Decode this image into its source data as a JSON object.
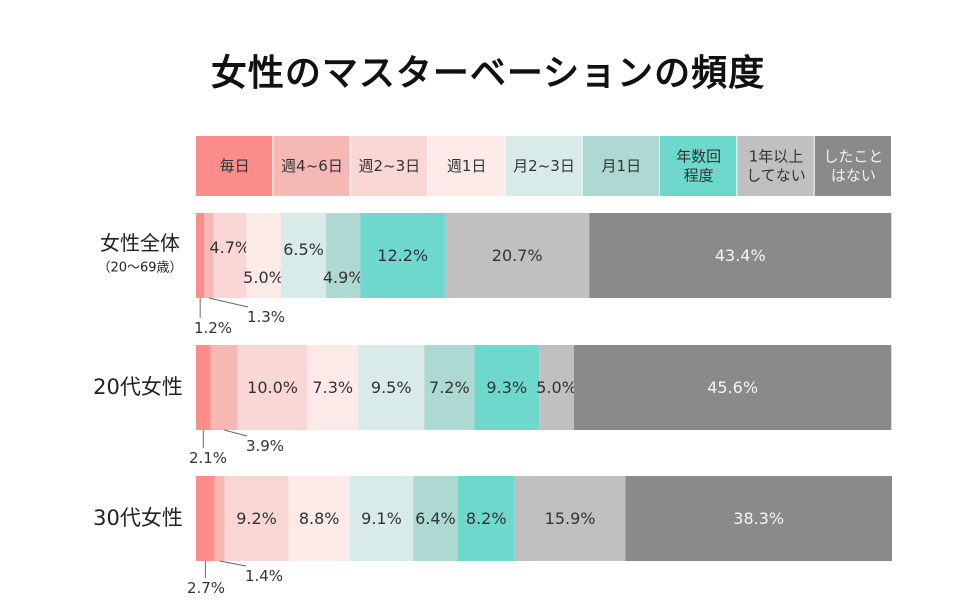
{
  "chart_data": {
    "type": "bar",
    "orientation": "horizontal",
    "stacked": true,
    "title": "女性のマスターベーションの頻度",
    "legend_placement": "top",
    "series": [
      {
        "name": "毎日",
        "color": "#fc8d8b",
        "values": [
          1.2,
          2.1,
          2.7
        ]
      },
      {
        "name": "週4~6日",
        "color": "#f5b8b4",
        "values": [
          1.3,
          3.9,
          1.4
        ]
      },
      {
        "name": "週2~3日",
        "color": "#f8d7d4",
        "values": [
          4.7,
          10.0,
          9.2
        ]
      },
      {
        "name": "週1日",
        "color": "#fbeae8",
        "values": [
          5.0,
          7.3,
          8.8
        ]
      },
      {
        "name": "月2~3日",
        "color": "#d8ebe8",
        "values": [
          6.5,
          9.5,
          9.1
        ]
      },
      {
        "name": "月1日",
        "color": "#aed8d2",
        "values": [
          4.9,
          7.2,
          6.4
        ]
      },
      {
        "name": "年数回\n程度",
        "color": "#6dd8cb",
        "values": [
          12.2,
          9.3,
          8.2
        ]
      },
      {
        "name": "1年以上\nしてない",
        "color": "#c0c0c0",
        "values": [
          20.7,
          5.0,
          15.9
        ]
      },
      {
        "name": "したこと\nはない",
        "color": "#8a8a8a",
        "values": [
          43.4,
          45.6,
          38.3
        ]
      }
    ],
    "categories": [
      "女性全体\n（20～69歳）",
      "20代女性",
      "30代女性"
    ],
    "unit": "%",
    "xlim": [
      0,
      100
    ],
    "grid": false
  }
}
